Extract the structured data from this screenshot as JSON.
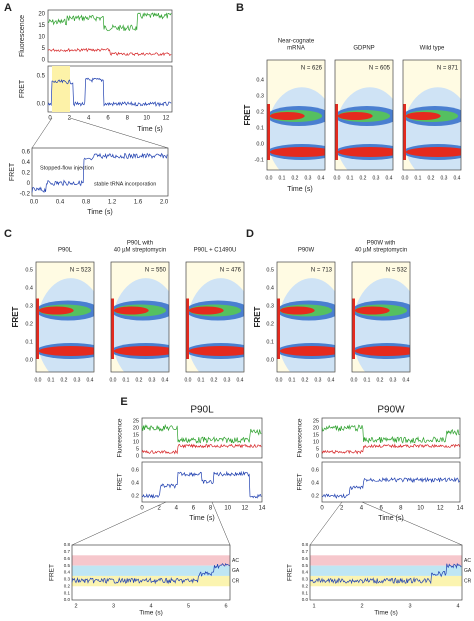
{
  "panel_a": {
    "label": "A",
    "fluorescence_label": "Fluorescence",
    "fret_label": "FRET",
    "fluorescence_ticks": [
      "0",
      "5",
      "10",
      "15",
      "20"
    ],
    "fret_ticks": [
      "0.0",
      "0.5"
    ],
    "x_ticks": [
      "0",
      "2",
      "4",
      "6",
      "8",
      "10",
      "12"
    ],
    "x_label": "Time (s)",
    "inset": {
      "y_label": "FRET",
      "y_ticks": [
        "-0.2",
        "0",
        "0.2",
        "0.4",
        "0.6"
      ],
      "x_ticks": [
        "0.0",
        "0.4",
        "0.8",
        "1.2",
        "1.6",
        "2.0"
      ],
      "x_label": "Time (s)",
      "annotations": [
        "Stopped-flow injection",
        "stable tRNA incorporation"
      ]
    }
  },
  "panel_b": {
    "label": "B",
    "y_label": "FRET",
    "y_ticks": [
      "0.4",
      "0.3",
      "0.2",
      "0.1",
      "0.0",
      "-0.1"
    ],
    "x_ticks": [
      "0.0",
      "0.1",
      "0.2",
      "0.3",
      "0.4"
    ],
    "x_label": "Time (s)",
    "heatmaps": [
      {
        "title": [
          "Near-cognate",
          "mRNA"
        ],
        "n": "N = 626"
      },
      {
        "title": [
          "GDPNP"
        ],
        "n": "N = 605"
      },
      {
        "title": [
          "Wild type"
        ],
        "n": "N = 871"
      }
    ]
  },
  "panel_c": {
    "label": "C",
    "y_label": "FRET",
    "y_ticks": [
      "0.5",
      "0.4",
      "0.3",
      "0.2",
      "0.1",
      "0.0"
    ],
    "x_ticks": [
      "0.0",
      "0.1",
      "0.2",
      "0.3",
      "0.4"
    ],
    "heatmaps": [
      {
        "title": [
          "P90L"
        ],
        "n": "N = 523"
      },
      {
        "title": [
          "P90L with",
          "40 µM streptomycin"
        ],
        "n": "N = 550"
      },
      {
        "title": [
          "P90L + C1490U"
        ],
        "n": "N = 476"
      }
    ]
  },
  "panel_d": {
    "label": "D",
    "y_label": "FRET",
    "y_ticks": [
      "0.5",
      "0.4",
      "0.3",
      "0.2",
      "0.1",
      "0.0"
    ],
    "x_ticks": [
      "0.0",
      "0.1",
      "0.2",
      "0.3",
      "0.4"
    ],
    "heatmaps": [
      {
        "title": [
          "P90W"
        ],
        "n": "N = 713"
      },
      {
        "title": [
          "P90W with",
          "40 µM streptomycin"
        ],
        "n": "N = 532"
      }
    ]
  },
  "panel_e": {
    "label": "E",
    "plots": [
      {
        "title": "P90L",
        "fluorescence_label": "Fluorescence",
        "fret_label": "FRET",
        "fluorescence_ticks": [
          "0",
          "5",
          "10",
          "15",
          "20",
          "25"
        ],
        "fret_ticks": [
          "0.2",
          "0.4",
          "0.6"
        ],
        "x_ticks": [
          "0",
          "2",
          "4",
          "6",
          "8",
          "10",
          "12",
          "14"
        ],
        "x_label": "Time (s)",
        "inset": {
          "y_label": "FRET",
          "y_ticks": [
            "0.0",
            "0.1",
            "0.2",
            "0.3",
            "0.4",
            "0.5",
            "0.6",
            "0.7",
            "0.8"
          ],
          "x_ticks": [
            "2",
            "3",
            "4",
            "5",
            "6"
          ],
          "x_label": "Time (s)",
          "state_labels": [
            "AC",
            "GA",
            "CR"
          ]
        }
      },
      {
        "title": "P90W",
        "fluorescence_label": "Fluorescence",
        "fret_label": "FRET",
        "fluorescence_ticks": [
          "0",
          "5",
          "10",
          "15",
          "20",
          "25"
        ],
        "fret_ticks": [
          "0.2",
          "0.4",
          "0.6"
        ],
        "x_ticks": [
          "0",
          "2",
          "4",
          "6",
          "8",
          "10",
          "12",
          "14"
        ],
        "x_label": "Time (s)",
        "inset": {
          "y_label": "FRET",
          "y_ticks": [
            "0.0",
            "0.1",
            "0.2",
            "0.3",
            "0.4",
            "0.5",
            "0.6",
            "0.7",
            "0.8"
          ],
          "x_ticks": [
            "1",
            "2",
            "3",
            "4"
          ],
          "x_label": "Time (s)",
          "state_labels": [
            "AC",
            "GA",
            "CR"
          ]
        }
      }
    ]
  }
}
